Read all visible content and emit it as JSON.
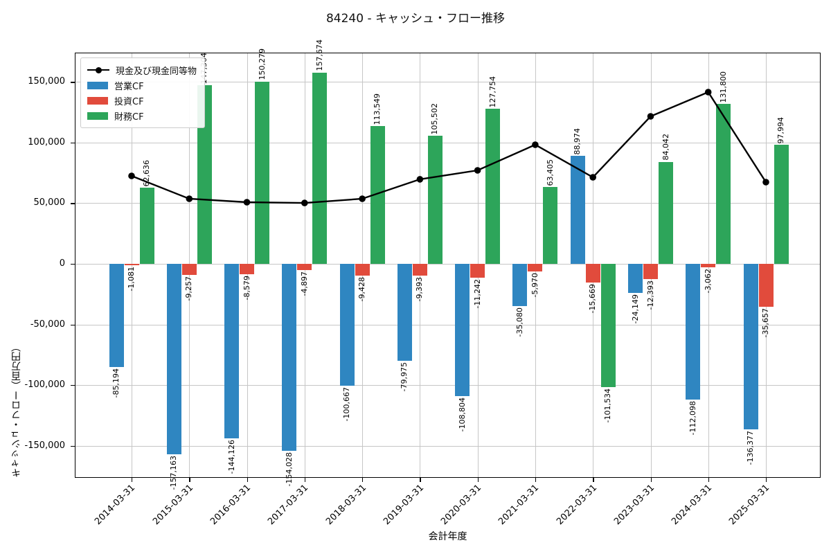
{
  "chart_data": {
    "type": "combo-bar-line",
    "title": "84240 - キャッシュ・フロー推移",
    "xlabel": "会計年度",
    "ylabel": "キャッシュ・フロー（百万円）",
    "categories": [
      "2014-03-31",
      "2015-03-31",
      "2016-03-31",
      "2017-03-31",
      "2018-03-31",
      "2019-03-31",
      "2020-03-31",
      "2021-03-31",
      "2022-03-31",
      "2023-03-31",
      "2024-03-31",
      "2025-03-31"
    ],
    "yticks": [
      150000,
      100000,
      50000,
      0,
      -50000,
      -100000,
      -150000
    ],
    "ylim": [
      -175000,
      175000
    ],
    "grid": true,
    "legend_position": "upper-left",
    "series": [
      {
        "name": "現金及び現金同等物",
        "type": "line",
        "color": "#000000",
        "values": [
          72500,
          53700,
          50800,
          50200,
          53700,
          69700,
          77100,
          98200,
          71400,
          121600,
          141600,
          67400
        ],
        "labeled": false
      },
      {
        "name": "営業CF",
        "type": "bar",
        "color": "#2f86c1",
        "values": [
          -85194,
          -157163,
          -144126,
          -154028,
          -100667,
          -79975,
          -108804,
          -35080,
          88974,
          -24149,
          -112098,
          -136377
        ],
        "labeled": true
      },
      {
        "name": "投資CF",
        "type": "bar",
        "color": "#e14b3c",
        "values": [
          -1081,
          -9257,
          -8579,
          -4897,
          -9428,
          -9393,
          -11242,
          -5970,
          -15669,
          -12393,
          -3062,
          -35657
        ],
        "labeled": true
      },
      {
        "name": "財務CF",
        "type": "bar",
        "color": "#2da55a",
        "values": [
          62636,
          147304,
          150279,
          157674,
          113549,
          105502,
          127754,
          63405,
          -101534,
          84042,
          131800,
          97994
        ],
        "labeled": true
      }
    ]
  }
}
